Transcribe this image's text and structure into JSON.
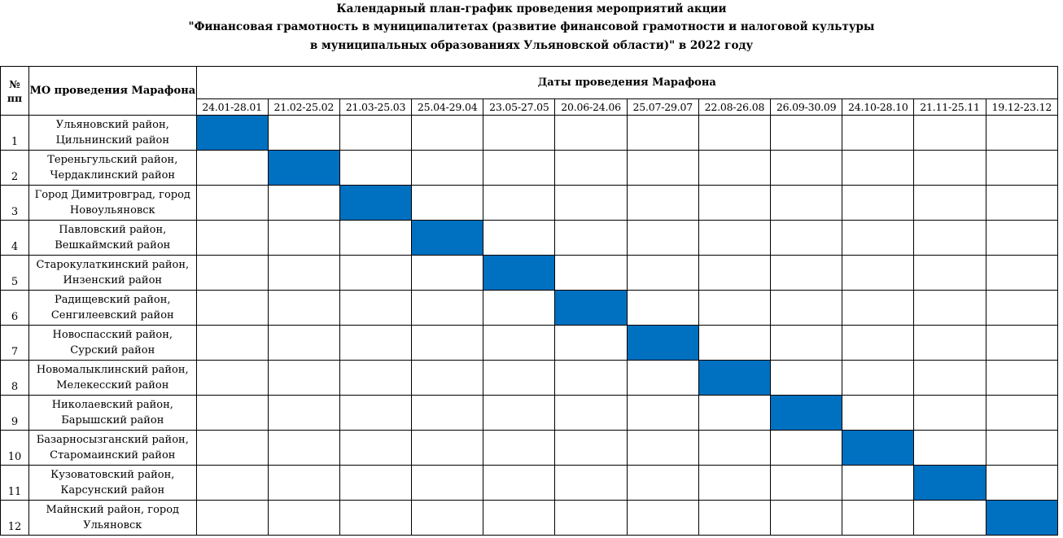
{
  "title": {
    "line1": "Календарный план-график проведения мероприятий акции",
    "line2": "\"Финансовая грамотность в муниципалитетах (развитие финансовой грамотности и налоговой культуры",
    "line3": "в муниципальных образованиях Ульяновской области)\" в 2022 году"
  },
  "header": {
    "num": "№ пп",
    "num_line1": "№",
    "num_line2": "пп",
    "mo": "МО проведения Марафона",
    "dates": "Даты проведения Марафона"
  },
  "dates": [
    "24.01-28.01",
    "21.02-25.02",
    "21.03-25.03",
    "25.04-29.04",
    "23.05-27.05",
    "20.06-24.06",
    "25.07-29.07",
    "22.08-26.08",
    "26.09-30.09",
    "24.10-28.10",
    "21.11-25.11",
    "19.12-23.12"
  ],
  "rows": [
    {
      "num": "1",
      "mo_line1": "Ульяновский район,",
      "mo_line2": "Цильнинский район",
      "active": 0
    },
    {
      "num": "2",
      "mo_line1": "Тереньгульский район,",
      "mo_line2": "Чердаклинский район",
      "active": 1
    },
    {
      "num": "3",
      "mo_line1": "Город Димитровград, город",
      "mo_line2": "Новоульяновск",
      "active": 2
    },
    {
      "num": "4",
      "mo_line1": "Павловский район,",
      "mo_line2": "Вешкаймский район",
      "active": 3
    },
    {
      "num": "5",
      "mo_line1": "Старокулаткинский район,",
      "mo_line2": "Инзенский район",
      "active": 4
    },
    {
      "num": "6",
      "mo_line1": "Радищевский район,",
      "mo_line2": "Сенгилеевский район",
      "active": 5
    },
    {
      "num": "7",
      "mo_line1": "Новоспасский район,",
      "mo_line2": "Сурский район",
      "active": 6
    },
    {
      "num": "8",
      "mo_line1": "Новомалыклинский район,",
      "mo_line2": "Мелекесский район",
      "active": 7
    },
    {
      "num": "9",
      "mo_line1": "Николаевский район,",
      "mo_line2": "Барышский район",
      "active": 8
    },
    {
      "num": "10",
      "mo_line1": "Базарносызганский район,",
      "mo_line2": "Старомаинский район",
      "active": 9
    },
    {
      "num": "11",
      "mo_line1": "Кузоватовский район,",
      "mo_line2": "Карсунский район",
      "active": 10
    },
    {
      "num": "12",
      "mo_line1": "Майнский район, город",
      "mo_line2": "Ульяновск",
      "active": 11
    }
  ],
  "colors": {
    "active_cell": "#0070c0",
    "grid": "#000000"
  }
}
